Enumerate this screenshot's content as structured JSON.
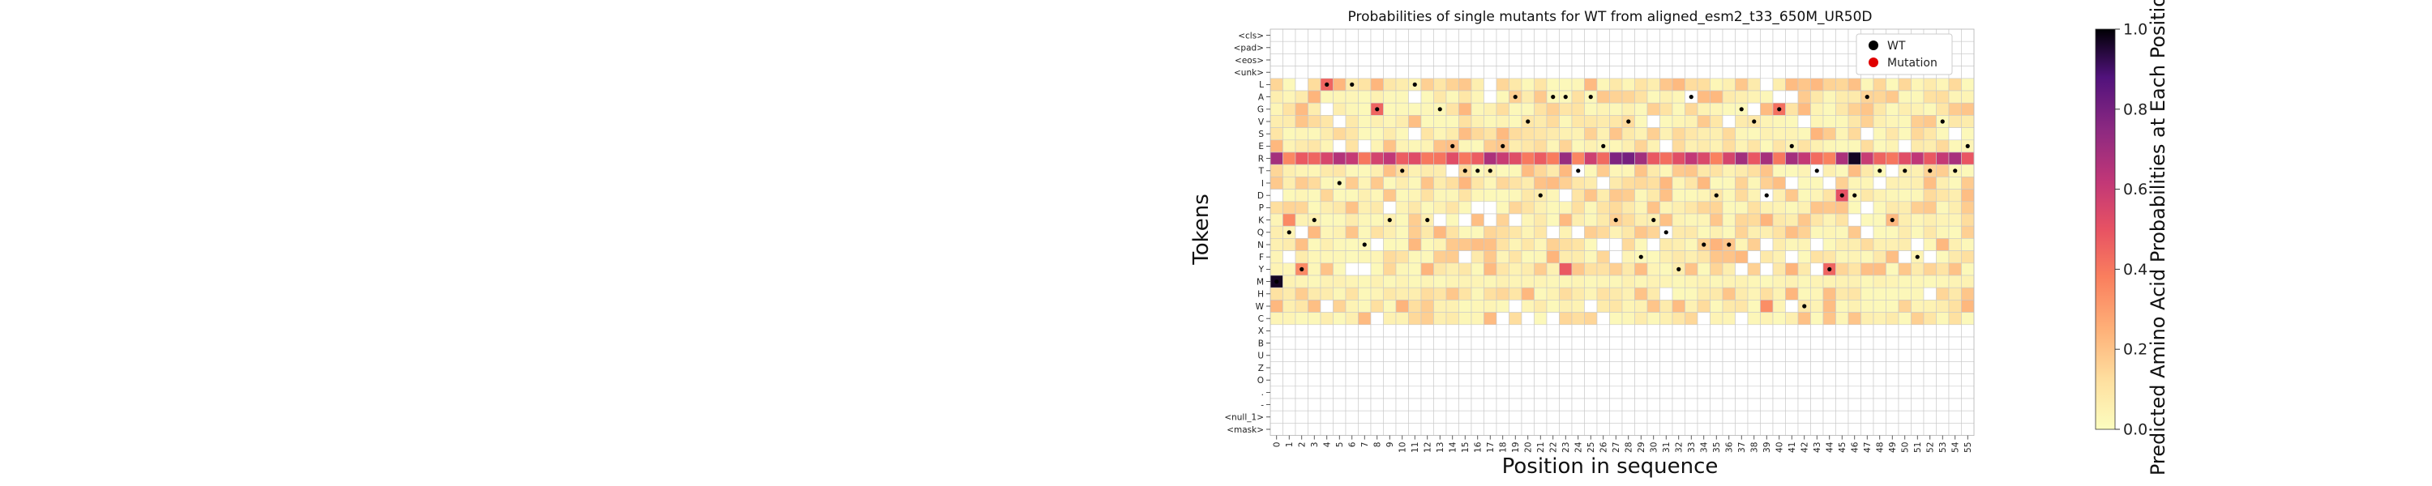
{
  "chart_data": {
    "type": "heatmap",
    "title": "Probabilities of single mutants for WT from aligned_esm2_t33_650M_UR50D",
    "xlabel": "Position in sequence",
    "ylabel": "Tokens",
    "colorbar_label": "Predicted Amino Acid Probabilities at Each Position",
    "colorbar_ticks": [
      "0.0",
      "0.2",
      "0.4",
      "0.6",
      "0.8",
      "1.0"
    ],
    "value_range": [
      0,
      1
    ],
    "colormap": "magma_r",
    "grid": true,
    "legend": {
      "placement": "top-right",
      "entries": [
        {
          "label": "WT",
          "color": "#000000"
        },
        {
          "label": "Mutation",
          "color": "#e00000"
        }
      ]
    },
    "tokens": [
      "<cls>",
      "<pad>",
      "<eos>",
      "<unk>",
      "L",
      "A",
      "G",
      "V",
      "S",
      "E",
      "R",
      "T",
      "I",
      "D",
      "P",
      "K",
      "Q",
      "N",
      "F",
      "Y",
      "M",
      "H",
      "W",
      "C",
      "X",
      "B",
      "U",
      "Z",
      "O",
      ".",
      "-",
      "<null_1>",
      "<mask>"
    ],
    "positions": [
      "0",
      "1",
      "2",
      "3",
      "4",
      "5",
      "6",
      "7",
      "8",
      "9",
      "10",
      "11",
      "12",
      "13",
      "14",
      "15",
      "16",
      "17",
      "18",
      "19",
      "20",
      "21",
      "22",
      "23",
      "24",
      "25",
      "26",
      "27",
      "28",
      "29",
      "30",
      "31",
      "32",
      "33",
      "34",
      "35",
      "36",
      "37",
      "38",
      "39",
      "40",
      "41",
      "42",
      "43",
      "44",
      "45",
      "46",
      "47",
      "48",
      "49",
      "50",
      "51",
      "52",
      "53",
      "54",
      "55"
    ],
    "wt_sequence": [
      "M",
      "Q",
      "Y",
      "K",
      "L",
      "I",
      "L",
      "N",
      "G",
      "K",
      "T",
      "L",
      "K",
      "G",
      "E",
      "T",
      "T",
      "T",
      "E",
      "A",
      "V",
      "D",
      "A",
      "A",
      "T",
      "A",
      "E",
      "K",
      "V",
      "F",
      "K",
      "Q",
      "Y",
      "A",
      "N",
      "D",
      "N",
      "G",
      "V",
      "D",
      "G",
      "E",
      "W",
      "T",
      "Y",
      "D",
      "D",
      "A",
      "T",
      "K",
      "T",
      "F",
      "T",
      "V",
      "T",
      "E"
    ],
    "high_cells": [
      {
        "token": "R",
        "position": "46",
        "value": 0.97
      },
      {
        "token": "M",
        "position": "0",
        "value": 0.97
      },
      {
        "token": "R",
        "position": "23",
        "value": 0.72
      },
      {
        "token": "R",
        "position": "27",
        "value": 0.78
      },
      {
        "token": "R",
        "position": "28",
        "value": 0.8
      },
      {
        "token": "D",
        "position": "45",
        "value": 0.5
      },
      {
        "token": "Y",
        "position": "23",
        "value": 0.48
      },
      {
        "token": "Y",
        "position": "44",
        "value": 0.45
      },
      {
        "token": "L",
        "position": "4",
        "value": 0.45
      },
      {
        "token": "G",
        "position": "8",
        "value": 0.45
      },
      {
        "token": "G",
        "position": "40",
        "value": 0.42
      },
      {
        "token": "W",
        "position": "39",
        "value": 0.34
      },
      {
        "token": "K",
        "position": "1",
        "value": 0.35
      },
      {
        "token": "Y",
        "position": "2",
        "value": 0.35
      }
    ],
    "note_scale": ""
  }
}
